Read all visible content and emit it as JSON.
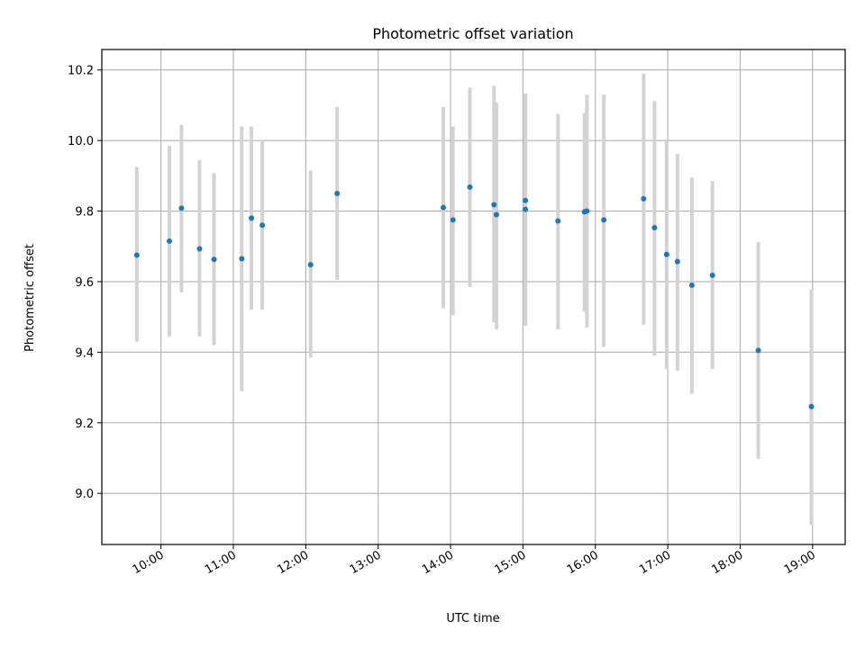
{
  "chart_data": {
    "type": "scatter",
    "title": "Photometric offset variation",
    "xlabel": "UTC time",
    "ylabel": "Photometric offset",
    "x_ticks": [
      "10:00",
      "11:00",
      "12:00",
      "13:00",
      "14:00",
      "15:00",
      "16:00",
      "17:00",
      "18:00",
      "19:00"
    ],
    "y_ticks": [
      "9.0",
      "9.2",
      "9.4",
      "9.6",
      "9.8",
      "10.0",
      "10.2"
    ],
    "xlim": [
      "09:11",
      "19:27"
    ],
    "ylim": [
      8.855,
      10.258
    ],
    "grid": true,
    "colors": {
      "point": "#1f77b4",
      "errorbar": "#d3d3d3",
      "grid": "#b0b0b0"
    },
    "series": [
      {
        "points": [
          {
            "x": "09:40",
            "y": 9.675,
            "err_low": 9.43,
            "err_high": 9.925
          },
          {
            "x": "10:07",
            "y": 9.715,
            "err_low": 9.445,
            "err_high": 9.985
          },
          {
            "x": "10:17",
            "y": 9.808,
            "err_low": 9.57,
            "err_high": 10.045
          },
          {
            "x": "10:32",
            "y": 9.693,
            "err_low": 9.445,
            "err_high": 9.945
          },
          {
            "x": "10:44",
            "y": 9.663,
            "err_low": 9.42,
            "err_high": 9.908
          },
          {
            "x": "11:07",
            "y": 9.665,
            "err_low": 9.29,
            "err_high": 10.04
          },
          {
            "x": "11:15",
            "y": 9.78,
            "err_low": 9.52,
            "err_high": 10.04
          },
          {
            "x": "11:24",
            "y": 9.76,
            "err_low": 9.52,
            "err_high": 10.0
          },
          {
            "x": "12:04",
            "y": 9.648,
            "err_low": 9.385,
            "err_high": 9.915
          },
          {
            "x": "12:26",
            "y": 9.85,
            "err_low": 9.605,
            "err_high": 10.095
          },
          {
            "x": "13:54",
            "y": 9.81,
            "err_low": 9.525,
            "err_high": 10.095
          },
          {
            "x": "14:02",
            "y": 9.775,
            "err_low": 9.505,
            "err_high": 10.04
          },
          {
            "x": "14:16",
            "y": 9.868,
            "err_low": 9.585,
            "err_high": 10.15
          },
          {
            "x": "14:36",
            "y": 9.818,
            "err_low": 9.485,
            "err_high": 10.155
          },
          {
            "x": "14:38",
            "y": 9.79,
            "err_low": 9.465,
            "err_high": 10.108
          },
          {
            "x": "15:02",
            "y": 9.83,
            "err_low": 9.475,
            "err_high": 10.133
          },
          {
            "x": "15:02",
            "y": 9.805,
            "err_low": 9.475,
            "err_high": 10.133
          },
          {
            "x": "15:29",
            "y": 9.772,
            "err_low": 9.465,
            "err_high": 10.075
          },
          {
            "x": "15:51",
            "y": 9.798,
            "err_low": 9.515,
            "err_high": 10.078
          },
          {
            "x": "15:53",
            "y": 9.8,
            "err_low": 9.47,
            "err_high": 10.13
          },
          {
            "x": "16:07",
            "y": 9.775,
            "err_low": 9.415,
            "err_high": 10.13
          },
          {
            "x": "16:40",
            "y": 9.835,
            "err_low": 9.478,
            "err_high": 10.19
          },
          {
            "x": "16:49",
            "y": 9.753,
            "err_low": 9.39,
            "err_high": 10.112
          },
          {
            "x": "16:59",
            "y": 9.677,
            "err_low": 9.352,
            "err_high": 10.0
          },
          {
            "x": "17:08",
            "y": 9.657,
            "err_low": 9.348,
            "err_high": 9.962
          },
          {
            "x": "17:20",
            "y": 9.59,
            "err_low": 9.282,
            "err_high": 9.895
          },
          {
            "x": "17:37",
            "y": 9.618,
            "err_low": 9.352,
            "err_high": 9.885
          },
          {
            "x": "18:15",
            "y": 9.405,
            "err_low": 9.098,
            "err_high": 9.712
          },
          {
            "x": "18:59",
            "y": 9.246,
            "err_low": 8.91,
            "err_high": 9.578
          }
        ]
      }
    ]
  }
}
